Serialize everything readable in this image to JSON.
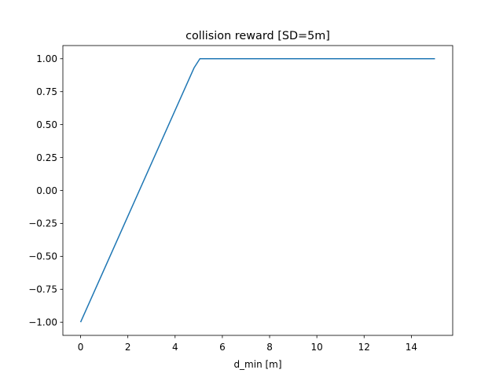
{
  "chart_data": {
    "type": "line",
    "title": "collision reward [SD=5m]",
    "xlabel": "d_min [m]",
    "ylabel": "",
    "xlim": [
      -0.75,
      15.75
    ],
    "ylim": [
      -1.1,
      1.1
    ],
    "xticks": [
      0,
      2,
      4,
      6,
      8,
      10,
      12,
      14
    ],
    "yticks": [
      -1.0,
      -0.75,
      -0.5,
      -0.25,
      0.0,
      0.25,
      0.5,
      0.75,
      1.0
    ],
    "ytick_labels": [
      "−1.00",
      "−0.75",
      "−0.50",
      "−0.25",
      "0.00",
      "0.25",
      "0.50",
      "0.75",
      "1.00"
    ],
    "grid": false,
    "legend": "none",
    "series": [
      {
        "color": "#1f77b4",
        "x": [
          0,
          4.8,
          5.05,
          15
        ],
        "y": [
          -1.0,
          0.93,
          1.0,
          1.0
        ]
      }
    ]
  }
}
